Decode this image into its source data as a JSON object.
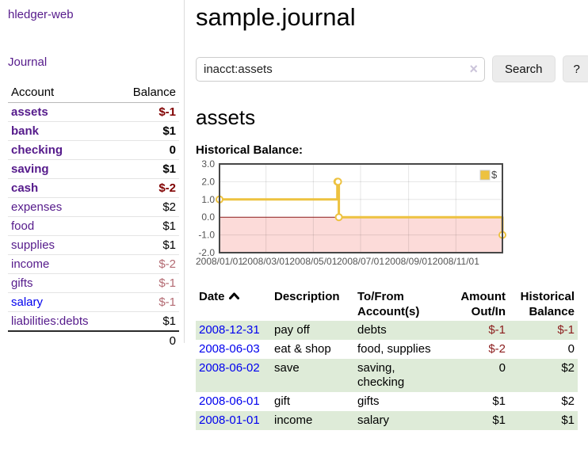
{
  "colors": {
    "link_purple": "#551a8b",
    "link_blue": "#0000ee",
    "negative_strong": "#800000",
    "negative_soft": "#b36a72",
    "table_negative": "#8b1c1c",
    "row_highlight_green": "#deebd8",
    "chart_series_gold": "#edc240",
    "chart_negative_region_pink": "#fcdbd9",
    "chart_zero_line_red": "#8b1a1a"
  },
  "sidebar": {
    "brand": "hledger-web",
    "journal_link": "Journal",
    "accounts": {
      "headers": {
        "account": "Account",
        "balance": "Balance"
      },
      "rows": [
        {
          "name": "assets",
          "indent": 1,
          "bold": true,
          "blue": false,
          "balance": "$-1",
          "neg": "strong"
        },
        {
          "name": "bank",
          "indent": 2,
          "bold": true,
          "blue": false,
          "balance": "$1",
          "neg": null
        },
        {
          "name": "checking",
          "indent": 3,
          "bold": true,
          "blue": false,
          "balance": "0",
          "neg": null
        },
        {
          "name": "saving",
          "indent": 3,
          "bold": true,
          "blue": false,
          "balance": "$1",
          "neg": null
        },
        {
          "name": "cash",
          "indent": 2,
          "bold": true,
          "blue": false,
          "balance": "$-2",
          "neg": "strong"
        },
        {
          "name": "expenses",
          "indent": 1,
          "bold": false,
          "blue": false,
          "balance": "$2",
          "neg": null
        },
        {
          "name": "food",
          "indent": 2,
          "bold": false,
          "blue": false,
          "balance": "$1",
          "neg": null
        },
        {
          "name": "supplies",
          "indent": 2,
          "bold": false,
          "blue": false,
          "balance": "$1",
          "neg": null
        },
        {
          "name": "income",
          "indent": 1,
          "bold": false,
          "blue": false,
          "balance": "$-2",
          "neg": "soft"
        },
        {
          "name": "gifts",
          "indent": 2,
          "bold": false,
          "blue": false,
          "balance": "$-1",
          "neg": "soft"
        },
        {
          "name": "salary",
          "indent": 2,
          "bold": false,
          "blue": true,
          "balance": "$-1",
          "neg": "soft"
        },
        {
          "name": "liabilities:debts",
          "indent": 1,
          "bold": false,
          "blue": false,
          "balance": "$1",
          "neg": null
        }
      ],
      "total": "0"
    }
  },
  "main": {
    "title": "sample.journal",
    "search": {
      "value": "inacct:assets",
      "clear_label": "×",
      "search_button": "Search",
      "help_button": "?"
    },
    "account_heading": "assets",
    "chart_label": "Historical Balance:"
  },
  "chart_data": {
    "type": "line",
    "style": "step",
    "title": "Historical Balance",
    "series": [
      {
        "name": "$",
        "color": "#edc240",
        "points": [
          [
            "2008-01-01",
            1
          ],
          [
            "2008-06-01",
            2
          ],
          [
            "2008-06-02",
            2
          ],
          [
            "2008-06-03",
            0
          ],
          [
            "2008-12-31",
            -1
          ]
        ]
      }
    ],
    "x_range": [
      "2008-01-01",
      "2008-12-31"
    ],
    "ylim": [
      -2,
      3
    ],
    "x_ticks": [
      "2008/01/01",
      "2008/03/01",
      "2008/05/01",
      "2008/07/01",
      "2008/09/01",
      "2008/11/01"
    ],
    "y_ticks": [
      "3.0",
      "2.0",
      "1.0",
      "0.0",
      "-1.0",
      "-2.0"
    ],
    "grid": true,
    "legend": {
      "label": "$",
      "position": "top-right"
    },
    "negative_region_color": "#fcdbd9",
    "zero_line_color": "#8b1a1a"
  },
  "register": {
    "headers": {
      "date": "Date",
      "description": "Description",
      "accounts": "To/From Account(s)",
      "amount": "Amount Out/In",
      "balance": "Historical Balance"
    },
    "sort_icon": "chevron-up",
    "sort_column": "date",
    "rows": [
      {
        "date": "2008-12-31",
        "description": "pay off",
        "accounts": "debts",
        "amount": "$-1",
        "amount_neg": true,
        "balance": "$-1",
        "balance_neg": true,
        "highlight": true
      },
      {
        "date": "2008-06-03",
        "description": "eat & shop",
        "accounts": "food, supplies",
        "amount": "$-2",
        "amount_neg": true,
        "balance": "0",
        "balance_neg": false,
        "highlight": false
      },
      {
        "date": "2008-06-02",
        "description": "save",
        "accounts": "saving, checking",
        "amount": "0",
        "amount_neg": false,
        "balance": "$2",
        "balance_neg": false,
        "highlight": true
      },
      {
        "date": "2008-06-01",
        "description": "gift",
        "accounts": "gifts",
        "amount": "$1",
        "amount_neg": false,
        "balance": "$2",
        "balance_neg": false,
        "highlight": false
      },
      {
        "date": "2008-01-01",
        "description": "income",
        "accounts": "salary",
        "amount": "$1",
        "amount_neg": false,
        "balance": "$1",
        "balance_neg": false,
        "highlight": true
      }
    ]
  }
}
